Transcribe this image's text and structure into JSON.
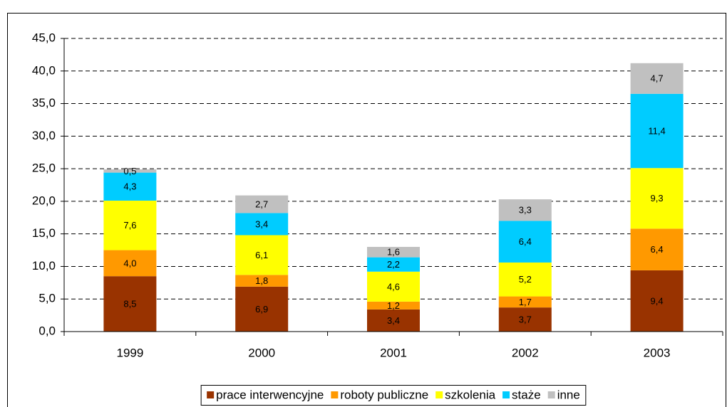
{
  "chart_data": {
    "type": "stacked-bar",
    "categories": [
      "1999",
      "2000",
      "2001",
      "2002",
      "2003"
    ],
    "series": [
      {
        "name": "prace interwencyjne",
        "color": "#993300",
        "values": [
          8.5,
          6.9,
          3.4,
          3.7,
          9.4
        ],
        "value_labels": [
          "8,5",
          "6,9",
          "3,4",
          "3,7",
          "9,4"
        ]
      },
      {
        "name": "roboty publiczne",
        "color": "#FF9900",
        "values": [
          4.0,
          1.8,
          1.2,
          1.7,
          6.4
        ],
        "value_labels": [
          "4,0",
          "1,8",
          "1,2",
          "1,7",
          "6,4"
        ]
      },
      {
        "name": "szkolenia",
        "color": "#FFFF00",
        "values": [
          7.6,
          6.1,
          4.6,
          5.2,
          9.3
        ],
        "value_labels": [
          "7,6",
          "6,1",
          "4,6",
          "5,2",
          "9,3"
        ]
      },
      {
        "name": "staże",
        "color": "#00CCFF",
        "values": [
          4.3,
          3.4,
          2.2,
          6.4,
          11.4
        ],
        "value_labels": [
          "4,3",
          "3,4",
          "2,2",
          "6,4",
          "11,4"
        ]
      },
      {
        "name": "inne",
        "color": "#C0C0C0",
        "values": [
          0.5,
          2.7,
          1.6,
          3.3,
          4.7
        ],
        "value_labels": [
          "0,5",
          "2,7",
          "1,6",
          "3,3",
          "4,7"
        ]
      }
    ],
    "ylim": [
      0,
      45
    ],
    "yticks": [
      {
        "value": 0,
        "label": "0,0"
      },
      {
        "value": 5,
        "label": "5,0"
      },
      {
        "value": 10,
        "label": "10,0"
      },
      {
        "value": 15,
        "label": "15,0"
      },
      {
        "value": 20,
        "label": "20,0"
      },
      {
        "value": 25,
        "label": "25,0"
      },
      {
        "value": 30,
        "label": "30,0"
      },
      {
        "value": 35,
        "label": "35,0"
      },
      {
        "value": 40,
        "label": "40,0"
      },
      {
        "value": 45,
        "label": "45,0"
      }
    ],
    "grid": true,
    "legend": "bottom"
  }
}
